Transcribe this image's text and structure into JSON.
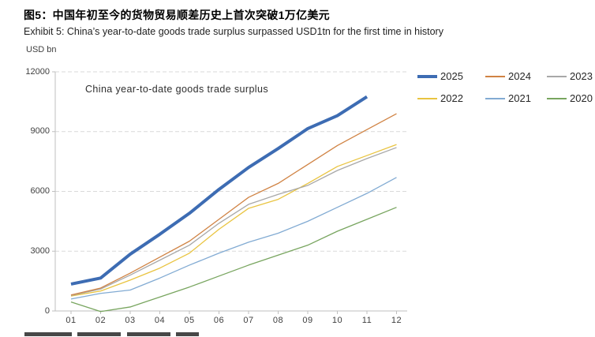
{
  "header": {
    "title_zh": "图5：中国年初至今的货物贸易顺差历史上首次突破1万亿美元",
    "title_en": "Exhibit 5: China’s year-to-date goods trade surplus surpassed USD1tn for the first time in history"
  },
  "chart_data": {
    "type": "line",
    "title": "China year-to-date goods trade surplus",
    "unit_label": "USD bn",
    "xlabel": "",
    "ylabel": "USD bn",
    "x_categories": [
      "01",
      "02",
      "03",
      "04",
      "05",
      "06",
      "07",
      "08",
      "09",
      "10",
      "11",
      "12"
    ],
    "ylim": [
      0,
      12000
    ],
    "y_ticks": [
      0,
      3000,
      6000,
      9000,
      12000
    ],
    "grid": "horizontal-dashed",
    "legend_position": "top-right",
    "axis_color": "#bfbfbf",
    "grid_color": "#d9d9d9",
    "series": [
      {
        "name": "2025",
        "color": "#3d6cb3",
        "width": 4,
        "values": [
          1350,
          1650,
          2850,
          3850,
          4900,
          6100,
          7200,
          8150,
          9150,
          9800,
          10750
        ]
      },
      {
        "name": "2024",
        "color": "#d08344",
        "width": 1.3,
        "values": [
          800,
          1150,
          1900,
          2700,
          3500,
          4600,
          5700,
          6400,
          7350,
          8300,
          9100,
          9900
        ]
      },
      {
        "name": "2023",
        "color": "#a8a8a8",
        "width": 1.3,
        "values": [
          780,
          1100,
          1800,
          2550,
          3300,
          4400,
          5350,
          5850,
          6300,
          7050,
          7650,
          8200
        ]
      },
      {
        "name": "2022",
        "color": "#e9c440",
        "width": 1.3,
        "values": [
          750,
          1000,
          1550,
          2150,
          2900,
          4100,
          5150,
          5600,
          6400,
          7250,
          7800,
          8350
        ]
      },
      {
        "name": "2021",
        "color": "#82abd3",
        "width": 1.3,
        "values": [
          600,
          880,
          1050,
          1650,
          2300,
          2900,
          3450,
          3900,
          4500,
          5200,
          5900,
          6700
        ]
      },
      {
        "name": "2020",
        "color": "#78a55f",
        "width": 1.3,
        "values": [
          450,
          -30,
          200,
          700,
          1200,
          1750,
          2300,
          2800,
          3300,
          4000,
          4600,
          5200
        ]
      }
    ]
  }
}
